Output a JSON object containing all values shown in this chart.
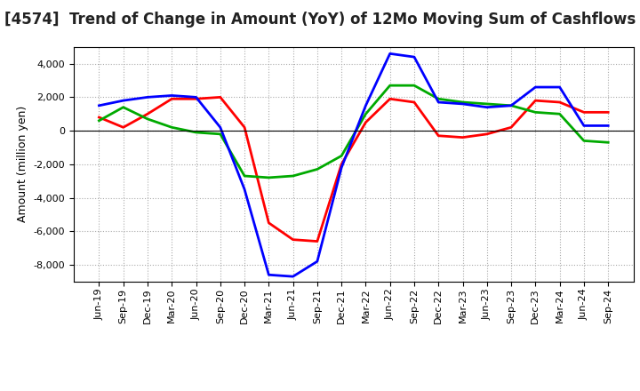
{
  "title": "[4574]  Trend of Change in Amount (YoY) of 12Mo Moving Sum of Cashflows",
  "ylabel": "Amount (million yen)",
  "x_labels": [
    "Jun-19",
    "Sep-19",
    "Dec-19",
    "Mar-20",
    "Jun-20",
    "Sep-20",
    "Dec-20",
    "Mar-21",
    "Jun-21",
    "Sep-21",
    "Dec-21",
    "Mar-22",
    "Jun-22",
    "Sep-22",
    "Dec-22",
    "Mar-23",
    "Jun-23",
    "Sep-23",
    "Dec-23",
    "Mar-24",
    "Jun-24",
    "Sep-24"
  ],
  "operating_cashflow": [
    800,
    200,
    1000,
    1900,
    1900,
    2000,
    200,
    -5500,
    -6500,
    -6600,
    -2000,
    500,
    1900,
    1700,
    -300,
    -400,
    -200,
    200,
    1800,
    1700,
    1100,
    1100
  ],
  "investing_cashflow": [
    600,
    1400,
    700,
    200,
    -100,
    -200,
    -2700,
    -2800,
    -2700,
    -2300,
    -1500,
    1000,
    2700,
    2700,
    1900,
    1700,
    1600,
    1500,
    1100,
    1000,
    -600,
    -700
  ],
  "free_cashflow": [
    1500,
    1800,
    2000,
    2100,
    2000,
    200,
    -3500,
    -8600,
    -8700,
    -7800,
    -2200,
    1500,
    4600,
    4400,
    1700,
    1600,
    1400,
    1500,
    2600,
    2600,
    300,
    300
  ],
  "operating_color": "#ff0000",
  "investing_color": "#00aa00",
  "free_color": "#0000ff",
  "line_width": 2.0,
  "ylim": [
    -9000,
    5000
  ],
  "yticks": [
    -8000,
    -6000,
    -4000,
    -2000,
    0,
    2000,
    4000
  ],
  "grid_color": "#aaaaaa",
  "background_color": "#ffffff",
  "title_fontsize": 12,
  "ylabel_fontsize": 9,
  "tick_fontsize": 8,
  "legend_fontsize": 9
}
